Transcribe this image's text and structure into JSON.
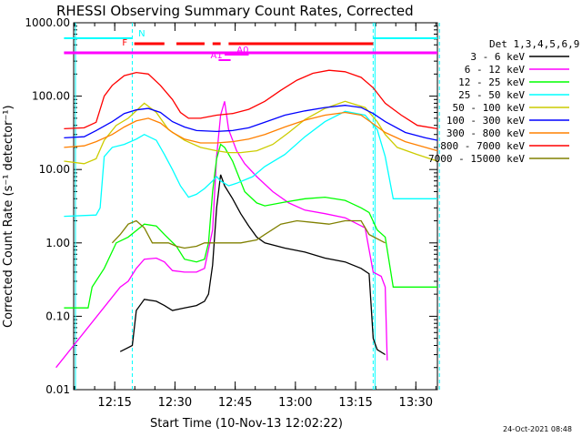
{
  "chart_data": {
    "type": "line",
    "title": "RHESSI Observing Summary Count Rates, Corrected",
    "xlabel": "Start Time (10-Nov-13 12:02:22)",
    "ylabel": "Corrected Count Rate (s⁻¹ detector⁻¹)",
    "x_ticks": [
      "12:15",
      "12:30",
      "12:45",
      "13:00",
      "13:15",
      "13:30"
    ],
    "x_range_min": [
      2.4,
      93.0
    ],
    "y_scale": "log",
    "y_ticks": [
      "1000.00",
      "100.00",
      "10.00",
      "1.00",
      "0.10",
      "0.01"
    ],
    "ylim": [
      0.01,
      1000
    ],
    "footer_date": "24-Oct-2021 08:48",
    "legend_title": "Det 1,3,4,5,6,9",
    "legend_placement": "right",
    "flags": [
      {
        "label": "N",
        "color": "#00ffff",
        "segments": [
          [
            0,
            17
          ],
          [
            77,
            93
          ]
        ]
      },
      {
        "label": "F",
        "color": "#ff0000",
        "segments": [
          [
            17.5,
            25
          ],
          [
            28,
            35
          ],
          [
            37,
            39
          ],
          [
            41,
            77
          ]
        ]
      },
      {
        "label": "A0",
        "color": "#ff00ff",
        "segments": [
          [
            40,
            46
          ]
        ]
      },
      {
        "label": "A1",
        "color": "#ff00ff",
        "segments": [
          [
            38.5,
            41.5
          ]
        ]
      },
      {
        "label": "",
        "color": "#ff00ff",
        "segments": [
          [
            0,
            93
          ]
        ]
      }
    ],
    "vlines": [
      17,
      77,
      93.5
    ],
    "series": [
      {
        "name": "3 - 6 keV",
        "color": "#000000",
        "points": [
          [
            14,
            0.033
          ],
          [
            17,
            0.04
          ],
          [
            18,
            0.12
          ],
          [
            20,
            0.17
          ],
          [
            23,
            0.16
          ],
          [
            25,
            0.14
          ],
          [
            27,
            0.12
          ],
          [
            30,
            0.13
          ],
          [
            33,
            0.14
          ],
          [
            35,
            0.16
          ],
          [
            36,
            0.2
          ],
          [
            37,
            0.5
          ],
          [
            38,
            3.0
          ],
          [
            39,
            8.5
          ],
          [
            40,
            6.0
          ],
          [
            42,
            4.0
          ],
          [
            44,
            2.5
          ],
          [
            46,
            1.7
          ],
          [
            48,
            1.2
          ],
          [
            50,
            1.0
          ],
          [
            55,
            0.85
          ],
          [
            60,
            0.75
          ],
          [
            65,
            0.62
          ],
          [
            70,
            0.55
          ],
          [
            74,
            0.45
          ],
          [
            76,
            0.38
          ],
          [
            77,
            0.05
          ],
          [
            78,
            0.035
          ],
          [
            80,
            0.03
          ]
        ]
      },
      {
        "name": "6 - 12 keV",
        "color": "#ff00ff",
        "points": [
          [
            -2,
            0.02
          ],
          [
            14,
            0.25
          ],
          [
            16,
            0.3
          ],
          [
            18,
            0.45
          ],
          [
            20,
            0.6
          ],
          [
            23,
            0.62
          ],
          [
            25,
            0.55
          ],
          [
            27,
            0.42
          ],
          [
            30,
            0.4
          ],
          [
            33,
            0.4
          ],
          [
            35,
            0.45
          ],
          [
            37,
            1.5
          ],
          [
            38,
            15
          ],
          [
            39,
            55
          ],
          [
            40,
            85
          ],
          [
            41,
            35
          ],
          [
            43,
            18
          ],
          [
            45,
            12
          ],
          [
            48,
            8
          ],
          [
            52,
            5
          ],
          [
            56,
            3.5
          ],
          [
            60,
            2.8
          ],
          [
            65,
            2.5
          ],
          [
            70,
            2.2
          ],
          [
            75,
            1.6
          ],
          [
            77,
            0.4
          ],
          [
            79,
            0.35
          ],
          [
            80,
            0.25
          ],
          [
            80.5,
            0.025
          ]
        ]
      },
      {
        "name": "12 - 25 keV",
        "color": "#00ff00",
        "points": [
          [
            0,
            0.13
          ],
          [
            6,
            0.13
          ],
          [
            7,
            0.25
          ],
          [
            10,
            0.45
          ],
          [
            13,
            1.0
          ],
          [
            16,
            1.2
          ],
          [
            20,
            1.8
          ],
          [
            23,
            1.7
          ],
          [
            25,
            1.3
          ],
          [
            28,
            0.9
          ],
          [
            30,
            0.6
          ],
          [
            33,
            0.55
          ],
          [
            35,
            0.6
          ],
          [
            36,
            1.0
          ],
          [
            37,
            5
          ],
          [
            38,
            14
          ],
          [
            39,
            22
          ],
          [
            40,
            20
          ],
          [
            42,
            13
          ],
          [
            45,
            5
          ],
          [
            48,
            3.5
          ],
          [
            50,
            3.2
          ],
          [
            55,
            3.6
          ],
          [
            60,
            4.0
          ],
          [
            65,
            4.2
          ],
          [
            70,
            3.8
          ],
          [
            74,
            3.0
          ],
          [
            76,
            2.6
          ],
          [
            78,
            1.5
          ],
          [
            80,
            1.2
          ],
          [
            82,
            0.25
          ],
          [
            93,
            0.25
          ]
        ]
      },
      {
        "name": "25 - 50 keV",
        "color": "#00ffff",
        "points": [
          [
            0,
            2.3
          ],
          [
            8,
            2.4
          ],
          [
            9,
            3.0
          ],
          [
            10,
            15
          ],
          [
            12,
            20
          ],
          [
            15,
            22
          ],
          [
            18,
            26
          ],
          [
            20,
            30
          ],
          [
            23,
            25
          ],
          [
            25,
            16
          ],
          [
            27,
            10
          ],
          [
            29,
            6
          ],
          [
            31,
            4.2
          ],
          [
            33,
            4.6
          ],
          [
            35,
            5.5
          ],
          [
            37,
            7
          ],
          [
            38,
            8
          ],
          [
            39,
            7
          ],
          [
            41,
            6
          ],
          [
            43,
            6.5
          ],
          [
            47,
            8
          ],
          [
            50,
            11
          ],
          [
            55,
            16
          ],
          [
            60,
            28
          ],
          [
            65,
            45
          ],
          [
            70,
            62
          ],
          [
            75,
            55
          ],
          [
            78,
            35
          ],
          [
            80,
            15
          ],
          [
            82,
            4
          ],
          [
            88,
            4
          ],
          [
            93,
            4
          ]
        ]
      },
      {
        "name": "50 - 100 keV",
        "color": "#cccc00",
        "points": [
          [
            0,
            13
          ],
          [
            5,
            12
          ],
          [
            8,
            14
          ],
          [
            10,
            25
          ],
          [
            13,
            40
          ],
          [
            16,
            50
          ],
          [
            20,
            80
          ],
          [
            23,
            60
          ],
          [
            26,
            35
          ],
          [
            30,
            25
          ],
          [
            34,
            20
          ],
          [
            38,
            18
          ],
          [
            41,
            17
          ],
          [
            44,
            17
          ],
          [
            48,
            18
          ],
          [
            52,
            22
          ],
          [
            56,
            32
          ],
          [
            60,
            48
          ],
          [
            65,
            68
          ],
          [
            70,
            85
          ],
          [
            75,
            70
          ],
          [
            78,
            45
          ],
          [
            80,
            30
          ],
          [
            83,
            20
          ],
          [
            88,
            16
          ],
          [
            93,
            13
          ]
        ]
      },
      {
        "name": "100 - 300 keV",
        "color": "#0000ff",
        "points": [
          [
            0,
            27
          ],
          [
            5,
            28
          ],
          [
            8,
            34
          ],
          [
            12,
            45
          ],
          [
            15,
            58
          ],
          [
            18,
            65
          ],
          [
            21,
            68
          ],
          [
            24,
            60
          ],
          [
            27,
            45
          ],
          [
            30,
            38
          ],
          [
            33,
            34
          ],
          [
            38,
            33
          ],
          [
            42,
            34
          ],
          [
            46,
            37
          ],
          [
            50,
            44
          ],
          [
            55,
            55
          ],
          [
            60,
            63
          ],
          [
            65,
            70
          ],
          [
            70,
            75
          ],
          [
            74,
            70
          ],
          [
            77,
            58
          ],
          [
            80,
            45
          ],
          [
            85,
            32
          ],
          [
            90,
            27
          ],
          [
            93,
            25
          ]
        ]
      },
      {
        "name": "300 - 800 keV",
        "color": "#ff8000",
        "points": [
          [
            0,
            20
          ],
          [
            5,
            21
          ],
          [
            8,
            24
          ],
          [
            12,
            30
          ],
          [
            15,
            38
          ],
          [
            18,
            46
          ],
          [
            21,
            50
          ],
          [
            24,
            43
          ],
          [
            27,
            32
          ],
          [
            30,
            26
          ],
          [
            34,
            23
          ],
          [
            38,
            23
          ],
          [
            42,
            24
          ],
          [
            46,
            26
          ],
          [
            50,
            30
          ],
          [
            55,
            38
          ],
          [
            60,
            47
          ],
          [
            65,
            55
          ],
          [
            70,
            60
          ],
          [
            74,
            55
          ],
          [
            77,
            42
          ],
          [
            80,
            32
          ],
          [
            85,
            24
          ],
          [
            90,
            20
          ],
          [
            93,
            18
          ]
        ]
      },
      {
        "name": "800 - 7000 keV",
        "color": "#ff0000",
        "points": [
          [
            0,
            36
          ],
          [
            5,
            37
          ],
          [
            8,
            44
          ],
          [
            10,
            100
          ],
          [
            12,
            140
          ],
          [
            15,
            190
          ],
          [
            18,
            210
          ],
          [
            21,
            200
          ],
          [
            24,
            140
          ],
          [
            27,
            90
          ],
          [
            29,
            60
          ],
          [
            31,
            50
          ],
          [
            34,
            50
          ],
          [
            38,
            55
          ],
          [
            42,
            58
          ],
          [
            46,
            66
          ],
          [
            50,
            85
          ],
          [
            54,
            120
          ],
          [
            58,
            165
          ],
          [
            62,
            205
          ],
          [
            66,
            225
          ],
          [
            70,
            215
          ],
          [
            74,
            180
          ],
          [
            77,
            130
          ],
          [
            80,
            80
          ],
          [
            84,
            55
          ],
          [
            88,
            40
          ],
          [
            93,
            36
          ]
        ]
      },
      {
        "name": "7000 - 15000 keV",
        "color": "#808000",
        "points": [
          [
            12,
            1.0
          ],
          [
            14,
            1.3
          ],
          [
            16,
            1.8
          ],
          [
            18,
            2.0
          ],
          [
            20,
            1.6
          ],
          [
            22,
            1.0
          ],
          [
            24,
            1.0
          ],
          [
            26,
            1.0
          ],
          [
            28,
            0.9
          ],
          [
            30,
            0.85
          ],
          [
            33,
            0.9
          ],
          [
            35,
            1.0
          ],
          [
            37,
            1.0
          ],
          [
            44,
            1.0
          ],
          [
            48,
            1.1
          ],
          [
            50,
            1.3
          ],
          [
            54,
            1.8
          ],
          [
            58,
            2.0
          ],
          [
            62,
            1.9
          ],
          [
            66,
            1.8
          ],
          [
            70,
            2.0
          ],
          [
            74,
            2.0
          ],
          [
            76,
            1.3
          ],
          [
            80,
            1.0
          ]
        ]
      }
    ]
  }
}
